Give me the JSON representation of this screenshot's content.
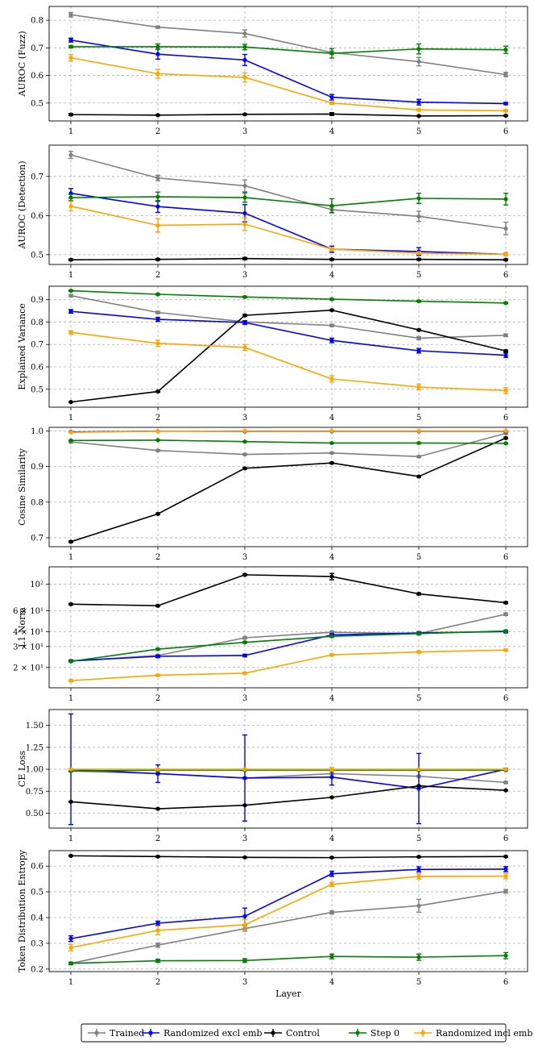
{
  "chart_data": {
    "type": "line",
    "x": [
      1,
      2,
      3,
      4,
      5,
      6
    ],
    "xlabel": "Layer",
    "series_styles": [
      {
        "name": "Trained",
        "color": "#808080"
      },
      {
        "name": "Randomized excl emb",
        "color": "#0000ff"
      },
      {
        "name": "Control",
        "color": "#000000"
      },
      {
        "name": "Step 0",
        "color": "#008000"
      },
      {
        "name": "Randomized incl emb",
        "color": "#ffa500"
      }
    ],
    "legend": {
      "placement": "bottom-center",
      "entries": [
        "Trained",
        "Randomized excl emb",
        "Control",
        "Step 0",
        "Randomized incl emb"
      ]
    },
    "panels": [
      {
        "ylabel": "AUROC (Fuzz)",
        "ylim": [
          0.435,
          0.85
        ],
        "yscale": "linear",
        "yticks": [
          0.5,
          0.6,
          0.7,
          0.8
        ],
        "ytick_labels": [
          "0.5",
          "0.6",
          "0.7",
          "0.8"
        ],
        "series": [
          {
            "name": "Trained",
            "values": [
              0.82,
              0.775,
              0.752,
              0.683,
              0.65,
              0.603
            ],
            "errors": [
              0.008,
              0.004,
              0.013,
              0.006,
              0.015,
              0.008
            ]
          },
          {
            "name": "Randomized excl emb",
            "values": [
              0.728,
              0.677,
              0.656,
              0.521,
              0.503,
              0.498
            ],
            "errors": [
              0.007,
              0.018,
              0.02,
              0.01,
              0.01,
              0.004
            ]
          },
          {
            "name": "Control",
            "values": [
              0.458,
              0.456,
              0.459,
              0.46,
              0.453,
              0.454
            ],
            "errors": [
              0.004,
              0.002,
              0.002,
              0.005,
              0.002,
              0.002
            ]
          },
          {
            "name": "Step 0",
            "values": [
              0.704,
              0.704,
              0.703,
              0.68,
              0.696,
              0.693
            ],
            "errors": [
              0.004,
              0.01,
              0.01,
              0.017,
              0.018,
              0.013
            ]
          },
          {
            "name": "Randomized incl emb",
            "values": [
              0.664,
              0.606,
              0.593,
              0.5,
              0.475,
              0.472
            ],
            "errors": [
              0.012,
              0.016,
              0.017,
              0.004,
              0.004,
              0.004
            ]
          }
        ]
      },
      {
        "ylabel": "AUROC (Detection)",
        "ylim": [
          0.475,
          0.78
        ],
        "yscale": "linear",
        "yticks": [
          0.5,
          0.6,
          0.7
        ],
        "ytick_labels": [
          "0.5",
          "0.6",
          "0.7"
        ],
        "series": [
          {
            "name": "Trained",
            "values": [
              0.755,
              0.696,
              0.676,
              0.615,
              0.598,
              0.567
            ],
            "errors": [
              0.009,
              0.007,
              0.015,
              0.007,
              0.013,
              0.016
            ]
          },
          {
            "name": "Randomized excl emb",
            "values": [
              0.657,
              0.623,
              0.606,
              0.514,
              0.508,
              0.501
            ],
            "errors": [
              0.012,
              0.015,
              0.022,
              0.008,
              0.01,
              0.004
            ]
          },
          {
            "name": "Control",
            "values": [
              0.487,
              0.488,
              0.49,
              0.488,
              0.488,
              0.487
            ],
            "errors": [
              0.002,
              0.002,
              0.003,
              0.002,
              0.002,
              0.002
            ]
          },
          {
            "name": "Step 0",
            "values": [
              0.646,
              0.648,
              0.646,
              0.625,
              0.644,
              0.642
            ],
            "errors": [
              0.008,
              0.012,
              0.012,
              0.018,
              0.013,
              0.015
            ]
          },
          {
            "name": "Randomized incl emb",
            "values": [
              0.624,
              0.575,
              0.578,
              0.514,
              0.504,
              0.501
            ],
            "errors": [
              0.012,
              0.017,
              0.016,
              0.004,
              0.003,
              0.004
            ]
          }
        ]
      },
      {
        "ylabel": "Explained Variance",
        "ylim": [
          0.42,
          0.96
        ],
        "yscale": "linear",
        "yticks": [
          0.5,
          0.6,
          0.7,
          0.8,
          0.9
        ],
        "ytick_labels": [
          "0.5",
          "0.6",
          "0.7",
          "0.8",
          "0.9"
        ],
        "series": [
          {
            "name": "Trained",
            "values": [
              0.918,
              0.843,
              0.801,
              0.785,
              0.728,
              0.741
            ],
            "errors": [
              0.005,
              0.005,
              0.005,
              0.005,
              0.007,
              0.006
            ]
          },
          {
            "name": "Randomized excl emb",
            "values": [
              0.848,
              0.812,
              0.798,
              0.718,
              0.672,
              0.652
            ],
            "errors": [
              0.008,
              0.009,
              0.008,
              0.01,
              0.01,
              0.01
            ]
          },
          {
            "name": "Control",
            "values": [
              0.443,
              0.49,
              0.83,
              0.853,
              0.765,
              0.671
            ],
            "errors": [
              0.002,
              0.003,
              0.004,
              0.003,
              0.003,
              0.004
            ]
          },
          {
            "name": "Step 0",
            "values": [
              0.94,
              0.924,
              0.912,
              0.902,
              0.893,
              0.885
            ],
            "errors": [
              0.003,
              0.003,
              0.003,
              0.003,
              0.003,
              0.003
            ]
          },
          {
            "name": "Randomized incl emb",
            "values": [
              0.754,
              0.705,
              0.687,
              0.546,
              0.51,
              0.494
            ],
            "errors": [
              0.007,
              0.014,
              0.013,
              0.014,
              0.013,
              0.013
            ]
          }
        ]
      },
      {
        "ylabel": "Cosine Similarity",
        "ylim": [
          0.675,
          1.01
        ],
        "yscale": "linear",
        "yticks": [
          0.7,
          0.8,
          0.9,
          1.0
        ],
        "ytick_labels": [
          "0.7",
          "0.8",
          "0.9",
          "1.0"
        ],
        "series": [
          {
            "name": "Trained",
            "values": [
              0.969,
              0.945,
              0.934,
              0.938,
              0.928,
              0.993
            ],
            "errors": [
              0.002,
              0.002,
              0.002,
              0.002,
              0.002,
              0.002
            ]
          },
          {
            "name": "Randomized excl emb",
            "values": [
              0.997,
              0.999,
              0.999,
              0.999,
              0.999,
              0.999
            ],
            "errors": [
              0.001,
              0.001,
              0.001,
              0.001,
              0.001,
              0.001
            ]
          },
          {
            "name": "Control",
            "values": [
              0.689,
              0.767,
              0.895,
              0.91,
              0.872,
              0.98
            ],
            "errors": [
              0.002,
              0.002,
              0.002,
              0.002,
              0.002,
              0.002
            ]
          },
          {
            "name": "Step 0",
            "values": [
              0.973,
              0.974,
              0.97,
              0.966,
              0.966,
              0.965
            ],
            "errors": [
              0.001,
              0.001,
              0.001,
              0.001,
              0.001,
              0.001
            ]
          },
          {
            "name": "Randomized incl emb",
            "values": [
              0.996,
              0.999,
              1.0,
              1.0,
              1.0,
              1.0
            ],
            "errors": [
              0.001,
              0.001,
              0.001,
              0.001,
              0.001,
              0.001
            ]
          }
        ]
      },
      {
        "ylabel": "L1 Norm",
        "ylim": [
          13.5,
          140
        ],
        "yscale": "log",
        "yticks": [
          20,
          30,
          40,
          60,
          100
        ],
        "ytick_labels": [
          "2 × 10¹",
          "3 × 10¹",
          "4 × 10¹",
          "6 × 10¹",
          "10²"
        ],
        "series": [
          {
            "name": "Trained",
            "values": [
              22.7,
              25.2,
              35.5,
              39.5,
              38.5,
              56
            ],
            "errors": [
              0.4,
              0.4,
              0.8,
              1.0,
              1.0,
              1.3
            ]
          },
          {
            "name": "Randomized excl emb",
            "values": [
              22.7,
              24.8,
              25.2,
              37.5,
              39,
              40
            ],
            "errors": [
              0.4,
              0.6,
              0.6,
              0.9,
              0.9,
              0.9
            ]
          },
          {
            "name": "Control",
            "values": [
              68,
              66,
              120,
              116,
              83,
              70
            ],
            "errors": [
              1.0,
              1.0,
              2.0,
              7.0,
              1.5,
              1.2
            ]
          },
          {
            "name": "Step 0",
            "values": [
              22.5,
              28.5,
              32.5,
              36.5,
              38.5,
              40.5
            ],
            "errors": [
              0.3,
              0.4,
              0.5,
              0.6,
              0.6,
              0.6
            ]
          },
          {
            "name": "Randomized incl emb",
            "values": [
              15.5,
              17.2,
              17.9,
              25.5,
              27,
              28
            ],
            "errors": [
              0.3,
              0.3,
              0.3,
              0.5,
              0.5,
              0.5
            ]
          }
        ]
      },
      {
        "ylabel": "CE Loss",
        "ylim": [
          0.33,
          1.68
        ],
        "yscale": "linear",
        "yticks": [
          0.5,
          0.75,
          1.0,
          1.25,
          1.5
        ],
        "ytick_labels": [
          "0.50",
          "0.75",
          "1.00",
          "1.25",
          "1.50"
        ],
        "series": [
          {
            "name": "Trained",
            "values": [
              0.98,
              0.95,
              0.9,
              0.95,
              0.92,
              0.85
            ],
            "errors": [
              0.01,
              0.01,
              0.01,
              0.01,
              0.01,
              0.01
            ]
          },
          {
            "name": "Randomized excl emb",
            "values": [
              1.0,
              0.95,
              0.9,
              0.91,
              0.78,
              1.0
            ],
            "errors": [
              0.63,
              0.1,
              0.49,
              0.09,
              0.4,
              0.01
            ]
          },
          {
            "name": "Control",
            "values": [
              0.63,
              0.55,
              0.59,
              0.68,
              0.81,
              0.76
            ],
            "errors": [
              0.005,
              0.005,
              0.005,
              0.005,
              0.005,
              0.005
            ]
          },
          {
            "name": "Step 0",
            "values": [
              0.98,
              0.99,
              0.99,
              0.99,
              0.99,
              0.99
            ],
            "errors": [
              0.005,
              0.005,
              0.005,
              0.005,
              0.005,
              0.005
            ]
          },
          {
            "name": "Randomized incl emb",
            "values": [
              1.0,
              1.0,
              1.0,
              1.0,
              1.0,
              1.0
            ],
            "errors": [
              0.005,
              0.005,
              0.005,
              0.02,
              0.005,
              0.005
            ]
          }
        ]
      },
      {
        "ylabel": "Token Distribution Entropy",
        "ylim": [
          0.19,
          0.66
        ],
        "yscale": "linear",
        "yticks": [
          0.2,
          0.3,
          0.4,
          0.5,
          0.6
        ],
        "ytick_labels": [
          "0.2",
          "0.3",
          "0.4",
          "0.5",
          "0.6"
        ],
        "series": [
          {
            "name": "Trained",
            "values": [
              0.222,
              0.293,
              0.357,
              0.42,
              0.446,
              0.502
            ],
            "errors": [
              0.004,
              0.008,
              0.01,
              0.006,
              0.025,
              0.007
            ]
          },
          {
            "name": "Randomized excl emb",
            "values": [
              0.318,
              0.378,
              0.405,
              0.57,
              0.587,
              0.588
            ],
            "errors": [
              0.011,
              0.008,
              0.032,
              0.01,
              0.01,
              0.01
            ]
          },
          {
            "name": "Control",
            "values": [
              0.64,
              0.637,
              0.634,
              0.633,
              0.636,
              0.637
            ],
            "errors": [
              0.002,
              0.002,
              0.002,
              0.002,
              0.002,
              0.002
            ]
          },
          {
            "name": "Step 0",
            "values": [
              0.222,
              0.232,
              0.233,
              0.249,
              0.246,
              0.252
            ],
            "errors": [
              0.005,
              0.006,
              0.007,
              0.009,
              0.012,
              0.012
            ]
          },
          {
            "name": "Randomized incl emb",
            "values": [
              0.283,
              0.35,
              0.372,
              0.529,
              0.56,
              0.561
            ],
            "errors": [
              0.012,
              0.017,
              0.021,
              0.008,
              0.01,
              0.01
            ]
          }
        ]
      }
    ]
  }
}
